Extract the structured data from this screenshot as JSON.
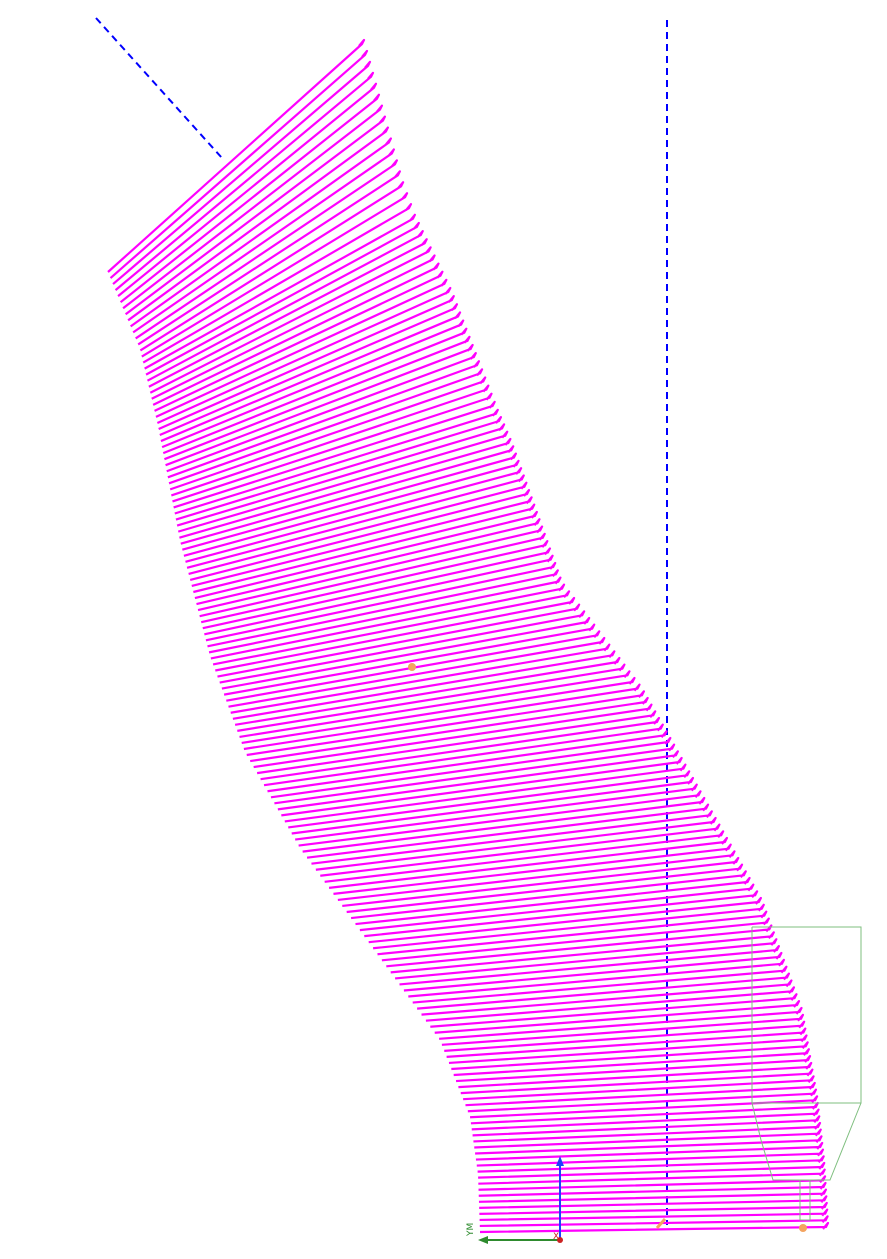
{
  "viewport": {
    "background": "#ffffff",
    "colors": {
      "toolpath": "#ff00ff",
      "guide_line": "#0000ff",
      "part_outline": "#7fbf7f",
      "marker": "#f4a460",
      "axis_x": "#2e8b2e",
      "axis_z": "#1f3fff",
      "origin": "#cc2222"
    },
    "toolpath": {
      "pass_count": 160,
      "style": "zig-zag passes along S-shaped path"
    },
    "triad": {
      "axis_label": "YM",
      "origin_label": "X"
    },
    "icons": [
      "coordinate-triad-icon",
      "point-marker-icon"
    ]
  }
}
